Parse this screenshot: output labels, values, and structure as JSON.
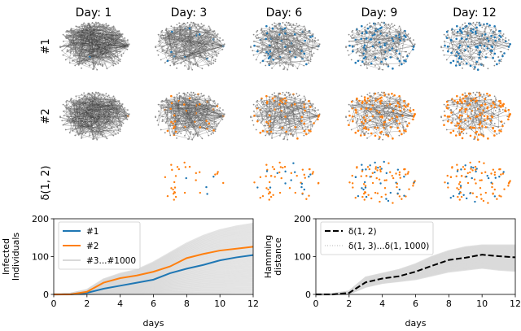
{
  "grid": {
    "column_titles": [
      "Day: 1",
      "Day: 3",
      "Day: 6",
      "Day: 9",
      "Day: 12"
    ],
    "column_days": [
      1,
      3,
      6,
      9,
      12
    ],
    "row_labels": [
      "#1",
      "#2",
      "δ(1, 2)"
    ],
    "colors": {
      "run1": "#1f77b4",
      "run2": "#ff7f0e",
      "node": "#888888",
      "edge": "#444444"
    }
  },
  "chart_data": [
    {
      "type": "line",
      "xlabel": "days",
      "ylabel": "Infected\nIndividuals",
      "ylabel_lines": [
        "Infected",
        "Individuals"
      ],
      "xlim": [
        0,
        12
      ],
      "ylim": [
        0,
        200
      ],
      "xticks": [
        "0",
        "2",
        "4",
        "6",
        "8",
        "10",
        "12"
      ],
      "yticks": [
        "0",
        "100",
        "200"
      ],
      "grid": false,
      "legend_position": "top-left",
      "x": [
        0,
        1,
        2,
        3,
        4,
        5,
        6,
        7,
        8,
        9,
        10,
        11,
        12
      ],
      "series": [
        {
          "name": "#1",
          "color": "#1f77b4",
          "values": [
            0,
            0,
            4,
            15,
            23,
            31,
            39,
            56,
            68,
            78,
            90,
            98,
            104
          ]
        },
        {
          "name": "#2",
          "color": "#ff7f0e",
          "values": [
            0,
            0,
            7,
            31,
            43,
            50,
            60,
            74,
            96,
            107,
            116,
            121,
            126
          ]
        },
        {
          "name": "#3...#1000",
          "color": "#d9d9d9",
          "band_upper": [
            0,
            2,
            12,
            40,
            55,
            65,
            85,
            110,
            135,
            155,
            170,
            180,
            187
          ],
          "band_lower": [
            0,
            0,
            0,
            1,
            1,
            2,
            2,
            3,
            3,
            4,
            4,
            5,
            5
          ]
        }
      ]
    },
    {
      "type": "line",
      "xlabel": "days",
      "ylabel": "Hamming\ndistance",
      "ylabel_lines": [
        "Hamming",
        "distance"
      ],
      "xlim": [
        0,
        12
      ],
      "ylim": [
        0,
        200
      ],
      "xticks": [
        "0",
        "2",
        "4",
        "6",
        "8",
        "10",
        "12"
      ],
      "yticks": [
        "0",
        "100",
        "200"
      ],
      "grid": false,
      "legend_position": "top-left",
      "x": [
        0,
        1,
        2,
        3,
        4,
        5,
        6,
        7,
        8,
        9,
        10,
        11,
        12
      ],
      "series": [
        {
          "name": "δ(1, 2)",
          "color": "#000000",
          "style": "dashed",
          "values": [
            0,
            0,
            4,
            32,
            42,
            48,
            60,
            76,
            91,
            97,
            105,
            101,
            98
          ]
        },
        {
          "name": "δ(1, 3)...δ(1, 1000)",
          "color": "#d9d9d9",
          "style": "dotted",
          "band_upper": [
            0,
            1,
            8,
            45,
            55,
            65,
            80,
            100,
            115,
            125,
            130,
            130,
            130
          ],
          "band_lower": [
            0,
            0,
            2,
            20,
            30,
            35,
            40,
            50,
            60,
            65,
            70,
            65,
            62
          ]
        }
      ]
    }
  ]
}
